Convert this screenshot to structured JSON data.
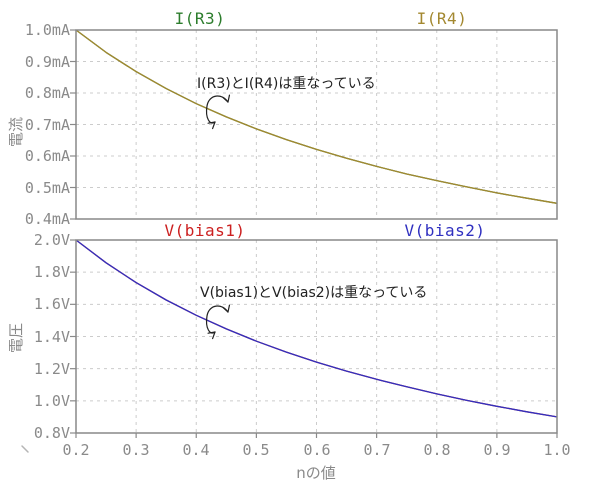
{
  "window": {
    "background": "#ffffff"
  },
  "colors": {
    "grid": "#cccccc",
    "border": "#888888",
    "tick": "#8a8a8a",
    "tick_label": "#8a8a8a",
    "annotation": "#222222",
    "ir3_green": "#2d7d2d",
    "ir4_olive": "#a38830",
    "vbias1_red": "#cc2020",
    "vbias2_blue": "#3030c0"
  },
  "x_axis": {
    "title": "nの値",
    "range": [
      0.2,
      1.0
    ],
    "tick_values": [
      0.2,
      0.3,
      0.4,
      0.5,
      0.6,
      0.7,
      0.8,
      0.9,
      1.0
    ],
    "tick_labels": [
      "0.2",
      "0.3",
      "0.4",
      "0.5",
      "0.6",
      "0.7",
      "0.8",
      "0.9",
      "1.0"
    ]
  },
  "chart_data": [
    {
      "type": "line",
      "panel": "top",
      "y_axis_label": "電流",
      "y_unit": "mA",
      "y_range": [
        0.4,
        1.0
      ],
      "y_ticks": [
        1.0,
        0.9,
        0.8,
        0.7,
        0.6,
        0.5,
        0.4
      ],
      "y_tick_labels": [
        "1.0mA",
        "0.9mA",
        "0.8mA",
        "0.7mA",
        "0.6mA",
        "0.5mA",
        "0.4mA"
      ],
      "x_range": [
        0.2,
        1.0
      ],
      "grid": true,
      "legend_position": "above",
      "annotation": "I(R3)とI(R4)は重なっている",
      "x": [
        0.2,
        0.25,
        0.3,
        0.35,
        0.4,
        0.45,
        0.5,
        0.55,
        0.6,
        0.65,
        0.7,
        0.75,
        0.8,
        0.85,
        0.9,
        0.95,
        1.0
      ],
      "series": [
        {
          "name": "I(R3)",
          "color": "#2d7d2d",
          "values": [
            1.0,
            0.929,
            0.868,
            0.814,
            0.766,
            0.724,
            0.686,
            0.652,
            0.621,
            0.593,
            0.567,
            0.543,
            0.522,
            0.502,
            0.483,
            0.466,
            0.45
          ]
        },
        {
          "name": "I(R4)",
          "color": "#a38830",
          "values": [
            1.0,
            0.929,
            0.868,
            0.814,
            0.766,
            0.724,
            0.686,
            0.652,
            0.621,
            0.593,
            0.567,
            0.543,
            0.522,
            0.502,
            0.483,
            0.466,
            0.45
          ]
        }
      ]
    },
    {
      "type": "line",
      "panel": "bottom",
      "y_axis_label": "電圧",
      "y_unit": "V",
      "y_range": [
        0.8,
        2.0
      ],
      "y_ticks": [
        2.0,
        1.8,
        1.6,
        1.4,
        1.2,
        1.0,
        0.8
      ],
      "y_tick_labels": [
        "2.0V",
        "1.8V",
        "1.6V",
        "1.4V",
        "1.2V",
        "1.0V",
        "0.8V"
      ],
      "x_range": [
        0.2,
        1.0
      ],
      "grid": true,
      "legend_position": "above",
      "annotation": "V(bias1)とV(bias2)は重なっている",
      "x": [
        0.2,
        0.25,
        0.3,
        0.35,
        0.4,
        0.45,
        0.5,
        0.55,
        0.6,
        0.65,
        0.7,
        0.75,
        0.8,
        0.85,
        0.9,
        0.95,
        1.0
      ],
      "series": [
        {
          "name": "V(bias1)",
          "color": "#cc2020",
          "values": [
            2.0,
            1.858,
            1.735,
            1.627,
            1.532,
            1.447,
            1.371,
            1.303,
            1.241,
            1.185,
            1.134,
            1.087,
            1.043,
            1.003,
            0.966,
            0.932,
            0.9
          ]
        },
        {
          "name": "V(bias2)",
          "color": "#3030c0",
          "values": [
            2.0,
            1.858,
            1.735,
            1.627,
            1.532,
            1.447,
            1.371,
            1.303,
            1.241,
            1.185,
            1.134,
            1.087,
            1.043,
            1.003,
            0.966,
            0.932,
            0.9
          ]
        }
      ]
    }
  ]
}
